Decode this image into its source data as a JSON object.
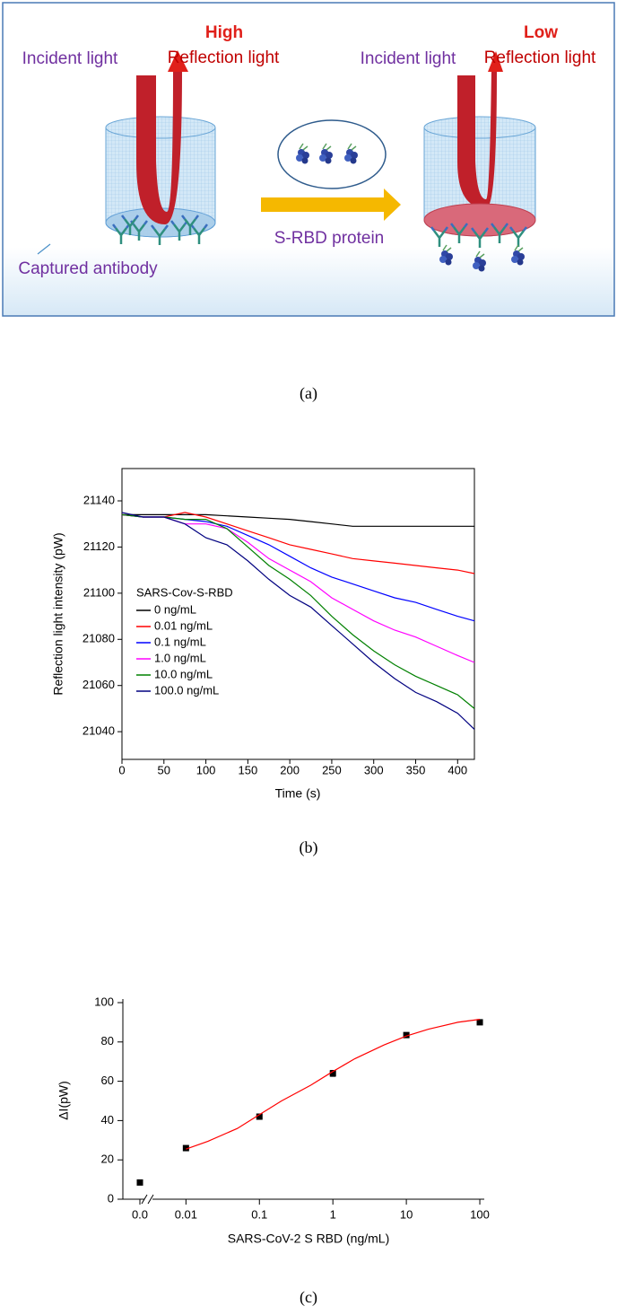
{
  "diagram": {
    "left": {
      "incident": "Incident light",
      "level": "High",
      "reflection": "Reflection light"
    },
    "right": {
      "incident": "Incident light",
      "level": "Low",
      "reflection": "Reflection light"
    },
    "process": "S-RBD protein",
    "antibody": "Captured antibody"
  },
  "captions": [
    "(a)",
    "(b)",
    "(c)"
  ],
  "chart_data": [
    {
      "type": "line",
      "x_label": "Time (s)",
      "y_label": "Reflection light intensity (pW)",
      "legend_title": "SARS-Cov-S-RBD",
      "legend": "left",
      "x": [
        0,
        25,
        50,
        75,
        100,
        125,
        150,
        175,
        200,
        225,
        250,
        275,
        300,
        325,
        350,
        375,
        400,
        420
      ],
      "xlim": [
        0,
        420
      ],
      "xticks": [
        0,
        50,
        100,
        150,
        200,
        250,
        300,
        350,
        400
      ],
      "ylim": [
        21028,
        21154
      ],
      "yticks": [
        21040,
        21060,
        21080,
        21100,
        21120,
        21140
      ],
      "series": [
        {
          "name": "0 ng/mL",
          "color": "#000000",
          "values": [
            21134,
            21134,
            21134,
            21134,
            21134,
            21133.5,
            21133,
            21132.5,
            21132,
            21131,
            21130,
            21129,
            21129,
            21129,
            21129,
            21129,
            21129,
            21129
          ]
        },
        {
          "name": "0.01 ng/mL",
          "color": "#ff0000",
          "values": [
            21134,
            21133,
            21133,
            21135,
            21133,
            21130,
            21127,
            21124,
            21121,
            21119,
            21117,
            21115,
            21114,
            21113,
            21112,
            21111,
            21110,
            21108.5
          ]
        },
        {
          "name": "0.1 ng/mL",
          "color": "#0000ff",
          "values": [
            21134,
            21133,
            21133,
            21132,
            21131,
            21129,
            21125,
            21121,
            21116,
            21111,
            21107,
            21104,
            21101,
            21098,
            21096,
            21093,
            21090,
            21088
          ]
        },
        {
          "name": "1.0 ng/mL",
          "color": "#ff00ff",
          "values": [
            21134,
            21133,
            21133,
            21130,
            21130,
            21128,
            21122,
            21115,
            21110,
            21105,
            21098,
            21093,
            21088,
            21084,
            21081,
            21077,
            21073,
            21070
          ]
        },
        {
          "name": "10.0 ng/mL",
          "color": "#008000",
          "values": [
            21134,
            21133,
            21133,
            21132,
            21132,
            21128,
            21120,
            21112,
            21106,
            21099,
            21090,
            21082,
            21075,
            21069,
            21064,
            21060,
            21056,
            21050
          ]
        },
        {
          "name": "100.0 ng/mL",
          "color": "#000080",
          "values": [
            21135,
            21133,
            21133,
            21130,
            21124,
            21121,
            21114,
            21106,
            21099,
            21094,
            21086,
            21078,
            21070,
            21063,
            21057,
            21053,
            21048,
            21041
          ]
        }
      ]
    },
    {
      "type": "scatter",
      "x_label": "SARS-CoV-2 S RBD (ng/mL)",
      "y_label": "ΔI(pW)",
      "log_x": true,
      "xlim": [
        0.0035,
        115
      ],
      "xticks": [
        {
          "value": 0,
          "label": "0.0"
        },
        0.01,
        0.1,
        1,
        10,
        100
      ],
      "ylim": [
        0,
        100
      ],
      "yticks": [
        0,
        20,
        40,
        60,
        80,
        100
      ],
      "series": [
        {
          "color": "#000000",
          "x": [
            0,
            0.01,
            0.1,
            1,
            10,
            100
          ],
          "values": [
            8.5,
            26,
            42,
            64,
            83.5,
            90
          ],
          "errors": [
            0.5,
            1,
            1,
            1.5,
            0.5,
            1
          ]
        },
        {
          "color": "#ff0000",
          "style": "line",
          "x": [
            0.01,
            0.02,
            0.05,
            0.1,
            0.2,
            0.5,
            1,
            2,
            5,
            10,
            20,
            50,
            100
          ],
          "values": [
            25.5,
            29.5,
            36,
            43,
            50,
            58,
            65,
            71.5,
            78.5,
            83,
            86.5,
            90,
            91.5
          ]
        }
      ]
    }
  ]
}
